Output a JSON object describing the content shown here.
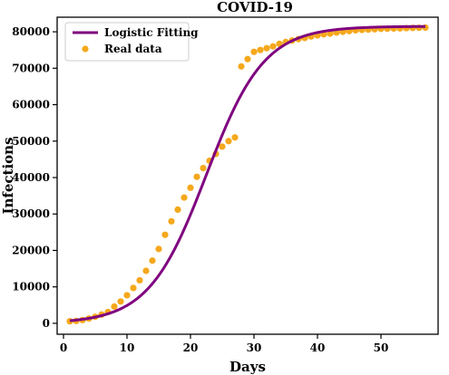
{
  "chart_data": {
    "type": "scatter",
    "title": "COVID-19",
    "xlabel": "Days",
    "ylabel": "Infections",
    "xlim": [
      -1,
      59
    ],
    "ylim": [
      -3000,
      84000
    ],
    "xticks": [
      0,
      10,
      20,
      30,
      40,
      50
    ],
    "yticks": [
      0,
      10000,
      20000,
      30000,
      40000,
      50000,
      60000,
      70000,
      80000
    ],
    "grid": false,
    "legend_position": "top-left",
    "colors": {
      "fit": "#7f007f",
      "data": "#f5a81c"
    },
    "series": [
      {
        "name": "Logistic Fitting",
        "kind": "line",
        "model": {
          "K": 81500,
          "r": 0.22,
          "t0": 22.5
        },
        "x_range": [
          1,
          57
        ]
      },
      {
        "name": "Real data",
        "kind": "scatter",
        "x": [
          1,
          2,
          3,
          4,
          5,
          6,
          7,
          8,
          9,
          10,
          11,
          12,
          13,
          14,
          15,
          16,
          17,
          18,
          19,
          20,
          21,
          22,
          23,
          24,
          25,
          26,
          27,
          28,
          29,
          30,
          31,
          32,
          33,
          34,
          35,
          36,
          37,
          38,
          39,
          40,
          41,
          42,
          43,
          44,
          45,
          46,
          47,
          48,
          49,
          50,
          51,
          52,
          53,
          54,
          55,
          56,
          57
        ],
        "y": [
          550,
          650,
          900,
          1300,
          1800,
          2400,
          3100,
          4600,
          6000,
          7700,
          9700,
          11800,
          14400,
          17200,
          20400,
          24300,
          28000,
          31200,
          34500,
          37200,
          40200,
          42600,
          44600,
          46500,
          48500,
          50000,
          51000,
          70500,
          72500,
          74500,
          75000,
          75500,
          76000,
          76700,
          77200,
          77600,
          78000,
          78300,
          78700,
          79000,
          79300,
          79500,
          79800,
          80000,
          80200,
          80400,
          80500,
          80600,
          80700,
          80800,
          80850,
          80900,
          80950,
          81000,
          81050,
          81100,
          81150
        ]
      }
    ]
  }
}
